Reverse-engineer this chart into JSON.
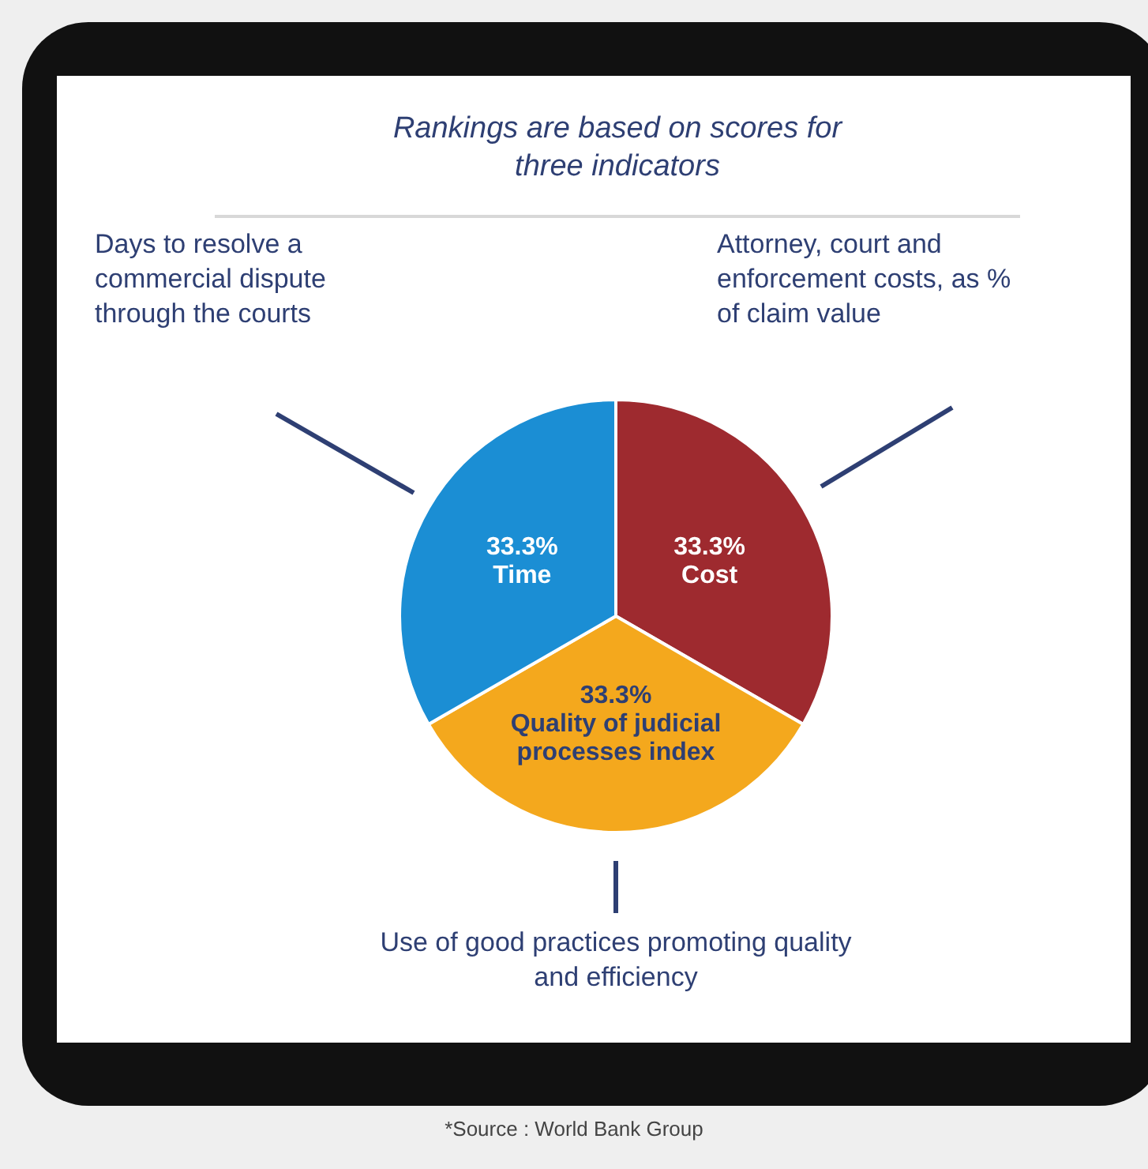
{
  "chart_data": {
    "type": "pie",
    "title": "Rankings are based on scores for three indicators",
    "categories": [
      "Cost",
      "Quality of judicial processes index",
      "Time"
    ],
    "values": [
      33.3,
      33.3,
      33.3
    ],
    "colors": [
      "#9e2a2f",
      "#f4a81d",
      "#1b8ed4"
    ],
    "value_labels": [
      "33.3%",
      "33.3%",
      "33.3%"
    ],
    "legend": false,
    "annotations": [
      "Days to resolve a commercial dispute through the courts",
      "Attorney, court and enforcement costs, as % of claim value",
      "Use of good practices promoting quality and efficiency",
      "*Source : World Bank Group"
    ]
  }
}
